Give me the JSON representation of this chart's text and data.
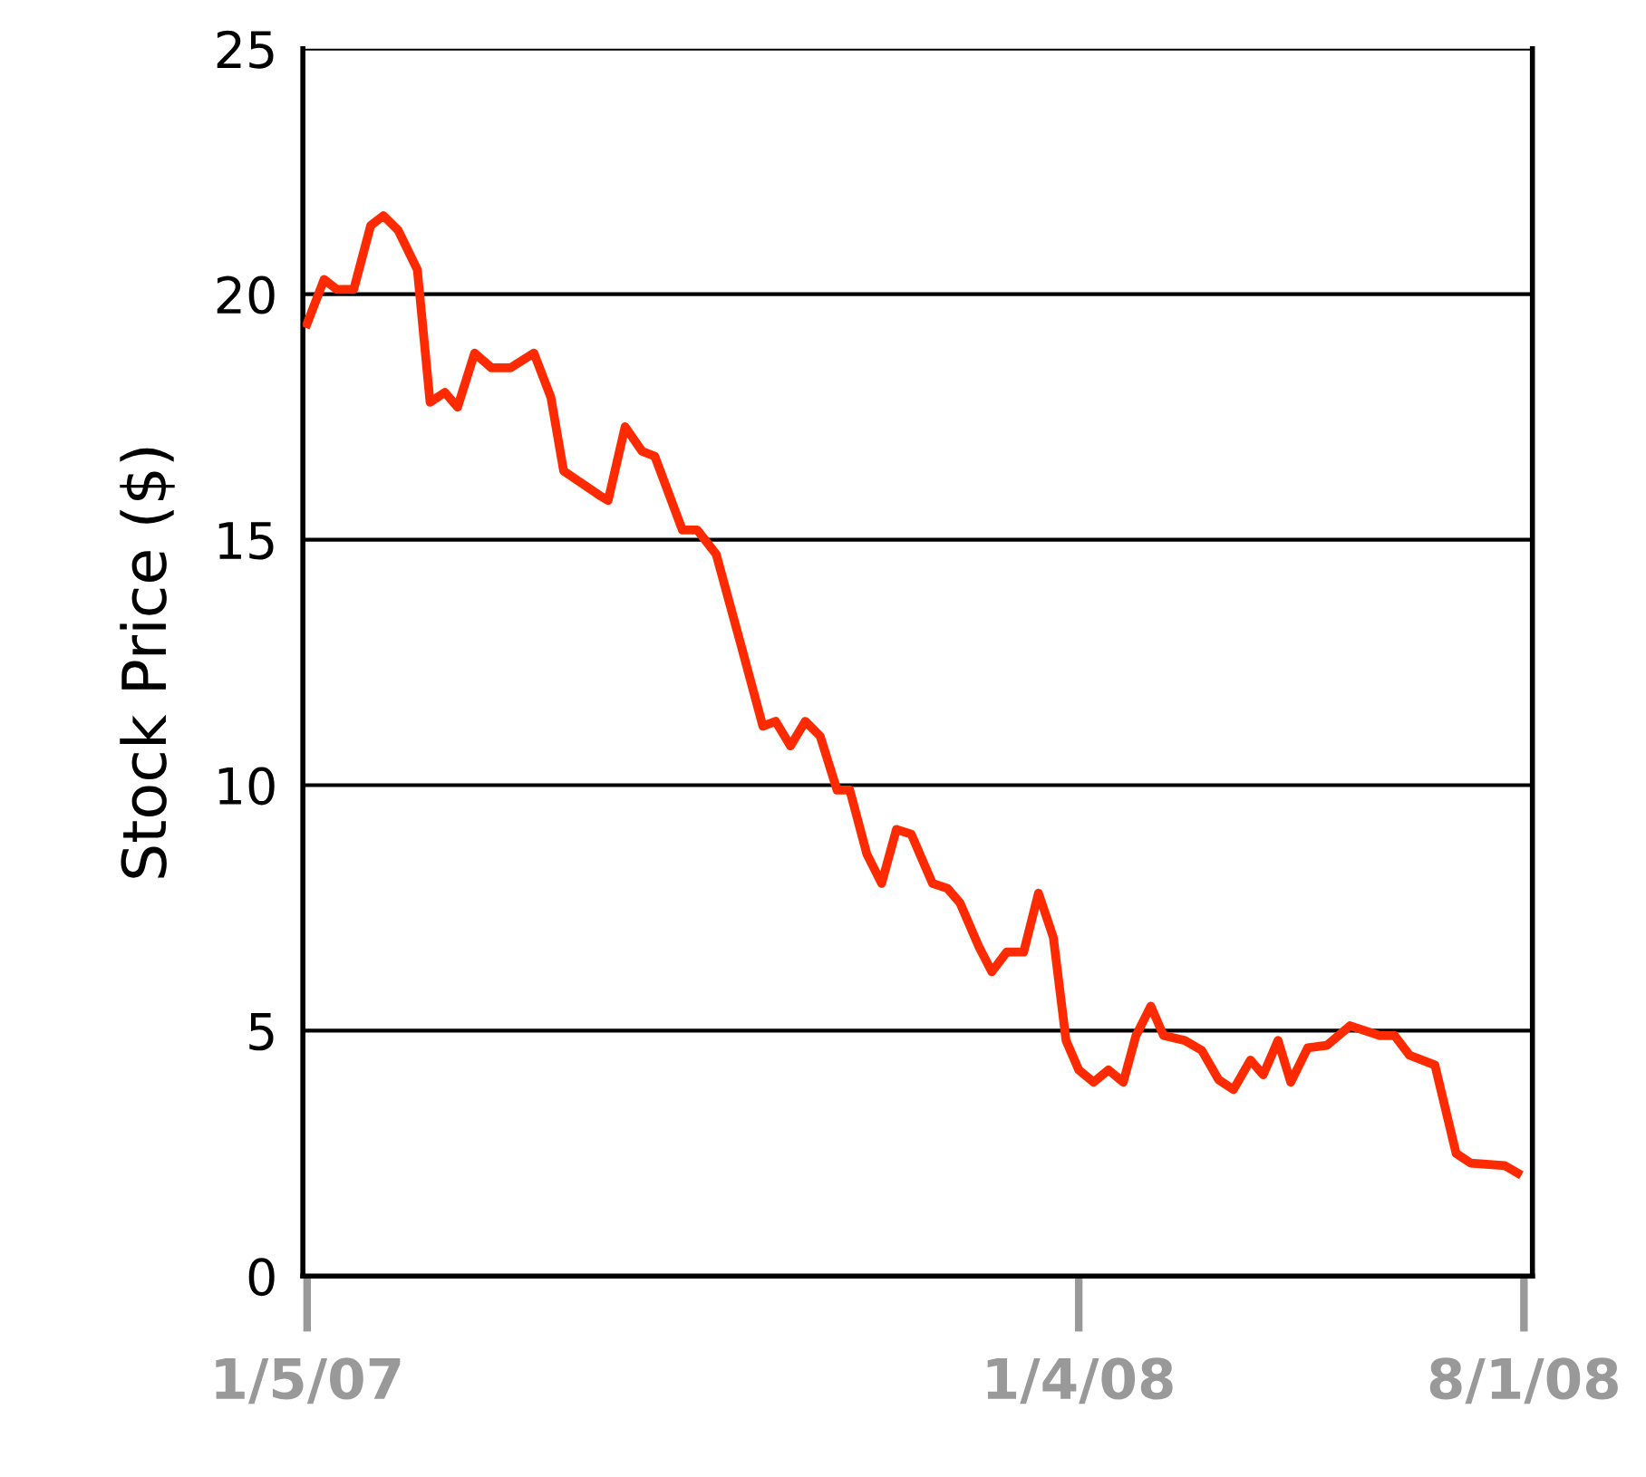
{
  "chart_data": {
    "type": "line",
    "ylabel": "Stock Price ($)",
    "x": [
      "2007-01-05",
      "2007-01-13",
      "2007-01-19",
      "2007-01-27",
      "2007-02-04",
      "2007-02-10",
      "2007-02-17",
      "2007-02-26",
      "2007-03-04",
      "2007-03-11",
      "2007-03-17",
      "2007-03-25",
      "2007-04-02",
      "2007-04-11",
      "2007-04-22",
      "2007-04-30",
      "2007-05-06",
      "2007-05-23",
      "2007-05-27",
      "2007-06-04",
      "2007-06-12",
      "2007-06-18",
      "2007-07-01",
      "2007-07-08",
      "2007-07-17",
      "2007-07-29",
      "2007-08-08",
      "2007-08-14",
      "2007-08-21",
      "2007-08-28",
      "2007-09-04",
      "2007-09-12",
      "2007-09-18",
      "2007-09-26",
      "2007-10-03",
      "2007-10-10",
      "2007-10-17",
      "2007-10-27",
      "2007-11-03",
      "2007-11-09",
      "2007-11-18",
      "2007-11-24",
      "2007-12-01",
      "2007-12-09",
      "2007-12-16",
      "2007-12-23",
      "2007-12-29",
      "2008-01-04",
      "2008-01-11",
      "2008-01-18",
      "2008-01-25",
      "2008-01-31",
      "2008-02-07",
      "2008-02-13",
      "2008-02-23",
      "2008-03-02",
      "2008-03-10",
      "2008-03-17",
      "2008-03-25",
      "2008-03-31",
      "2008-04-07",
      "2008-04-13",
      "2008-04-21",
      "2008-04-30",
      "2008-05-11",
      "2008-05-25",
      "2008-06-01",
      "2008-06-08",
      "2008-06-20",
      "2008-06-30",
      "2008-07-07",
      "2008-07-23",
      "2008-07-29"
    ],
    "series": [
      {
        "color": "#ff2a00",
        "values": [
          19.4,
          20.3,
          20.1,
          20.1,
          21.4,
          21.6,
          21.3,
          20.5,
          17.8,
          18.0,
          17.7,
          18.8,
          18.5,
          18.5,
          18.8,
          17.9,
          16.4,
          15.9,
          15.8,
          17.3,
          16.8,
          16.7,
          15.2,
          15.2,
          14.7,
          12.8,
          11.2,
          11.3,
          10.8,
          11.3,
          11.0,
          9.9,
          9.9,
          8.6,
          8.0,
          9.1,
          9.0,
          8.0,
          7.9,
          7.6,
          6.7,
          6.2,
          6.6,
          6.6,
          7.8,
          6.9,
          4.8,
          4.2,
          3.95,
          4.2,
          3.95,
          4.9,
          5.5,
          4.9,
          4.8,
          4.6,
          4.0,
          3.8,
          4.4,
          4.1,
          4.8,
          3.95,
          4.65,
          4.7,
          5.1,
          4.9,
          4.9,
          4.5,
          4.3,
          2.5,
          2.3,
          2.25,
          2.1
        ]
      }
    ],
    "xlim": [
      "2007-01-03",
      "2008-08-05"
    ],
    "xticks": [
      {
        "value": "2007-01-05",
        "label": "1/5/07"
      },
      {
        "value": "2008-01-04",
        "label": "1/4/08"
      },
      {
        "value": "2008-08-01",
        "label": "8/1/08"
      }
    ],
    "ylim": [
      0,
      25
    ],
    "yticks": [
      0,
      5,
      10,
      15,
      20,
      25
    ],
    "grid": "y",
    "legend": false,
    "marker": "none",
    "line_style": "solid"
  }
}
